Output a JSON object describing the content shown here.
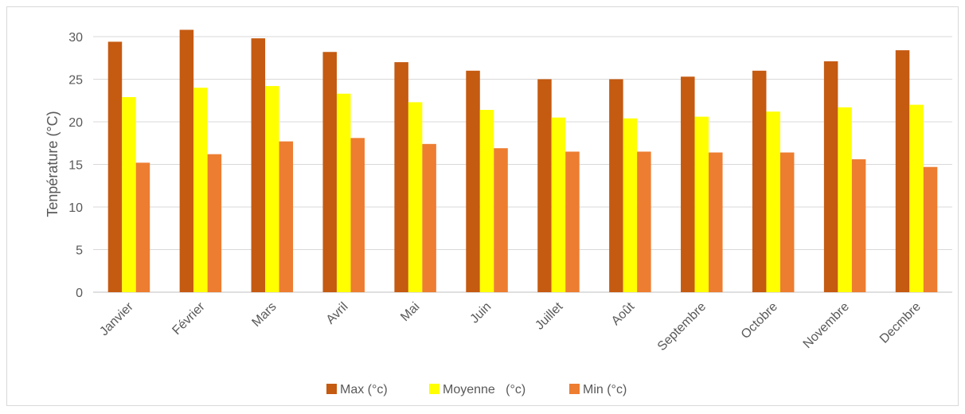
{
  "chart_data": {
    "type": "bar",
    "title": "",
    "xlabel": "",
    "ylabel": "Tenpérature (°C)",
    "ylim": [
      0,
      30
    ],
    "yticks": [
      0,
      5,
      10,
      15,
      20,
      25,
      30
    ],
    "grid": true,
    "legend_position": "bottom",
    "categories": [
      "Janvier",
      "Février",
      "Mars",
      "Avril",
      "Mai",
      "Juin",
      "Juillet",
      "Août",
      "Septembre",
      "Octobre",
      "Novembre",
      "Decmbre"
    ],
    "series": [
      {
        "name": "Max (°c)",
        "color": "#c55a11",
        "values": [
          29.4,
          30.8,
          29.8,
          28.2,
          27.0,
          26.0,
          25.0,
          25.0,
          25.3,
          26.0,
          27.1,
          28.4
        ]
      },
      {
        "name": "Moyenne   (°c)",
        "color": "#ffff00",
        "values": [
          22.9,
          24.0,
          24.2,
          23.3,
          22.3,
          21.4,
          20.5,
          20.4,
          20.6,
          21.2,
          21.7,
          22.0
        ]
      },
      {
        "name": "Min (°c)",
        "color": "#ed7d31",
        "values": [
          15.2,
          16.2,
          17.7,
          18.1,
          17.4,
          16.9,
          16.5,
          16.5,
          16.4,
          16.4,
          15.6,
          14.7
        ]
      }
    ]
  }
}
